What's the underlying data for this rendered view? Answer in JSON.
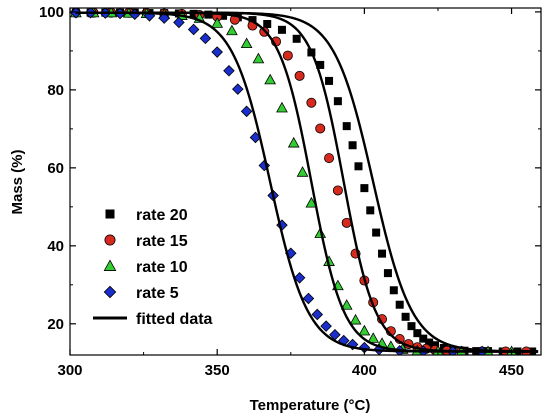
{
  "chart_data": {
    "type": "scatter",
    "xlabel": "Temperature (°C)",
    "ylabel": "Mass (%)",
    "xlim": [
      300,
      460
    ],
    "ylim": [
      12,
      101
    ],
    "xticks": [
      300,
      350,
      400,
      450
    ],
    "yticks": [
      20,
      40,
      60,
      80,
      100
    ],
    "grid": false,
    "legend_position": "left",
    "series": [
      {
        "name": "rate 20",
        "marker": "square",
        "color": "#000000",
        "x": [
          302,
          307,
          312,
          317,
          322,
          327,
          332,
          337,
          342,
          347,
          352,
          357,
          362,
          367,
          372,
          377,
          382,
          385,
          388,
          391,
          394,
          396,
          398,
          400,
          402,
          404,
          406,
          408,
          410,
          412,
          414,
          416,
          418,
          420,
          422,
          424,
          427,
          430,
          434,
          438,
          442,
          447,
          452,
          457
        ],
        "y": [
          99.8,
          99.8,
          99.8,
          99.8,
          99.8,
          99.7,
          99.7,
          99.6,
          99.5,
          99.3,
          99.0,
          98.6,
          97.9,
          96.9,
          95.4,
          93.1,
          89.6,
          86.4,
          82.3,
          77.1,
          70.7,
          65.8,
          60.4,
          54.8,
          49.1,
          43.4,
          38.0,
          33.0,
          28.6,
          24.9,
          21.8,
          19.4,
          17.6,
          16.2,
          15.2,
          14.5,
          13.8,
          13.4,
          13.1,
          13.0,
          13.0,
          12.9,
          12.9,
          12.9
        ]
      },
      {
        "name": "rate 15",
        "marker": "circle",
        "color": "#d62a1e",
        "x": [
          302,
          308,
          314,
          320,
          326,
          332,
          338,
          344,
          350,
          356,
          362,
          366,
          370,
          374,
          378,
          382,
          385,
          388,
          391,
          394,
          397,
          400,
          403,
          406,
          409,
          412,
          415,
          418,
          421,
          424,
          428,
          433,
          440,
          448,
          455
        ],
        "y": [
          99.8,
          99.8,
          99.8,
          99.8,
          99.7,
          99.6,
          99.5,
          99.2,
          98.8,
          98.0,
          96.5,
          94.9,
          92.4,
          88.8,
          83.6,
          76.7,
          70.1,
          62.5,
          54.2,
          45.9,
          38.0,
          31.1,
          25.5,
          21.2,
          18.1,
          16.1,
          14.8,
          14.0,
          13.6,
          13.3,
          13.1,
          13.0,
          12.9,
          12.9,
          12.9
        ]
      },
      {
        "name": "rate 10",
        "marker": "triangle",
        "color": "#33cc33",
        "x": [
          302,
          308,
          314,
          320,
          326,
          332,
          338,
          344,
          350,
          355,
          360,
          364,
          368,
          372,
          376,
          379,
          382,
          385,
          388,
          391,
          394,
          397,
          400,
          403,
          406,
          409,
          413,
          418,
          425,
          433,
          442,
          450
        ],
        "y": [
          99.8,
          99.8,
          99.8,
          99.7,
          99.6,
          99.4,
          99.1,
          98.4,
          97.1,
          95.2,
          91.9,
          88.0,
          82.6,
          75.4,
          66.4,
          58.9,
          51.0,
          43.2,
          36.0,
          29.8,
          24.8,
          21.0,
          18.2,
          16.3,
          15.0,
          14.2,
          13.5,
          13.1,
          13.0,
          12.9,
          12.9,
          12.9
        ]
      },
      {
        "name": "rate 5",
        "marker": "diamond",
        "color": "#1a2ecc",
        "x": [
          302,
          307,
          312,
          317,
          322,
          327,
          332,
          337,
          342,
          346,
          350,
          354,
          357,
          360,
          363,
          366,
          369,
          372,
          375,
          378,
          381,
          384,
          387,
          390,
          393,
          396,
          400,
          405,
          412,
          420,
          430,
          440
        ],
        "y": [
          99.8,
          99.8,
          99.7,
          99.6,
          99.4,
          99.0,
          98.4,
          97.3,
          95.5,
          93.2,
          89.7,
          84.9,
          80.2,
          74.5,
          67.8,
          60.6,
          52.9,
          45.3,
          38.1,
          31.8,
          26.5,
          22.4,
          19.4,
          17.2,
          15.7,
          14.7,
          13.9,
          13.4,
          13.1,
          13.0,
          12.9,
          12.9
        ]
      },
      {
        "name": "fitted data",
        "marker": "line",
        "color": "#000000",
        "fits": [
          {
            "T50": 403,
            "w": 6.6
          },
          {
            "T50": 393,
            "w": 5.4
          },
          {
            "T50": 382,
            "w": 5.5
          },
          {
            "T50": 368,
            "w": 6.4
          }
        ],
        "y_top": 99.8,
        "y_bottom": 12.9
      }
    ]
  }
}
